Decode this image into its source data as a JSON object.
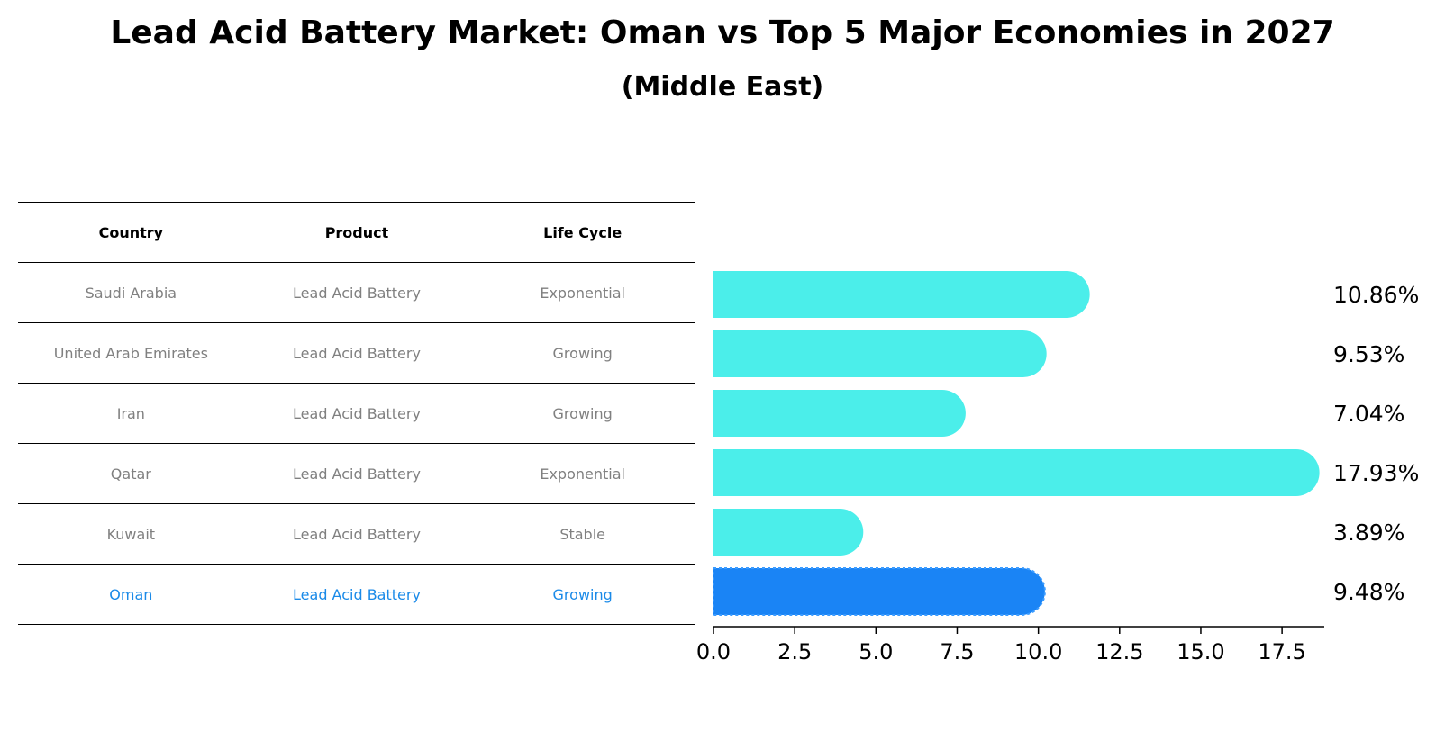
{
  "title": "Lead Acid Battery Market: Oman vs Top 5 Major Economies in 2027",
  "subtitle": "(Middle East)",
  "table": {
    "headers": [
      "Country",
      "Product",
      "Life Cycle"
    ],
    "rows": [
      {
        "country": "Saudi Arabia",
        "product": "Lead Acid Battery",
        "life_cycle": "Exponential"
      },
      {
        "country": "United Arab Emirates",
        "product": "Lead Acid Battery",
        "life_cycle": "Growing"
      },
      {
        "country": "Iran",
        "product": "Lead Acid Battery",
        "life_cycle": "Growing"
      },
      {
        "country": "Qatar",
        "product": "Lead Acid Battery",
        "life_cycle": "Exponential"
      },
      {
        "country": "Kuwait",
        "product": "Lead Acid Battery",
        "life_cycle": "Stable"
      },
      {
        "country": "Oman",
        "product": "Lead Acid Battery",
        "life_cycle": "Growing"
      }
    ]
  },
  "chart_data": {
    "type": "bar",
    "orientation": "horizontal",
    "categories": [
      "Saudi Arabia",
      "United Arab Emirates",
      "Iran",
      "Qatar",
      "Kuwait",
      "Oman"
    ],
    "values": [
      10.86,
      9.53,
      7.04,
      17.93,
      3.89,
      9.48
    ],
    "value_labels": [
      "10.86%",
      "9.53%",
      "7.04%",
      "17.93%",
      "3.89%",
      "9.48%"
    ],
    "highlight_category": "Oman",
    "xlim": [
      0,
      18.8
    ],
    "xticks": [
      0.0,
      2.5,
      5.0,
      7.5,
      10.0,
      12.5,
      15.0,
      17.5
    ],
    "xtick_labels": [
      "0.0",
      "2.5",
      "5.0",
      "7.5",
      "10.0",
      "12.5",
      "15.0",
      "17.5"
    ],
    "grid": false,
    "colors": {
      "bar": "#4beeea",
      "highlight": "#1a84f5",
      "text": "#000000"
    }
  },
  "colors": {
    "table_text": "#808080",
    "table_highlight": "#1a8ae8"
  }
}
